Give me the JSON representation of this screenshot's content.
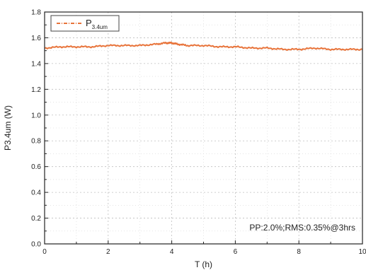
{
  "chart_data": {
    "type": "line",
    "xlabel": "T (h)",
    "ylabel": "P3.4um (W)",
    "xlim": [
      0,
      10
    ],
    "ylim": [
      0.0,
      1.8
    ],
    "xticks": [
      "0",
      "2",
      "4",
      "6",
      "8",
      "10"
    ],
    "yticks": [
      "0.0",
      "0.2",
      "0.4",
      "0.6",
      "0.8",
      "1.0",
      "1.2",
      "1.4",
      "1.6",
      "1.8"
    ],
    "grid": true,
    "legend_position": "top-left",
    "legend_main": "P",
    "legend_sub": "3.4um",
    "annotation": "PP:2.0%;RMS:0.35%@3hrs",
    "series": [
      {
        "name": "P3.4um",
        "color": "#e8743b",
        "x": [
          0,
          0.5,
          1,
          1.5,
          2,
          2.5,
          3,
          3.5,
          3.8,
          4,
          4.2,
          4.5,
          5,
          5.5,
          6,
          6.5,
          7,
          7.5,
          8,
          8.5,
          9,
          9.5,
          10
        ],
        "y": [
          1.52,
          1.53,
          1.53,
          1.53,
          1.54,
          1.54,
          1.54,
          1.55,
          1.56,
          1.56,
          1.55,
          1.54,
          1.54,
          1.53,
          1.53,
          1.52,
          1.52,
          1.51,
          1.51,
          1.52,
          1.51,
          1.51,
          1.51
        ]
      }
    ]
  }
}
